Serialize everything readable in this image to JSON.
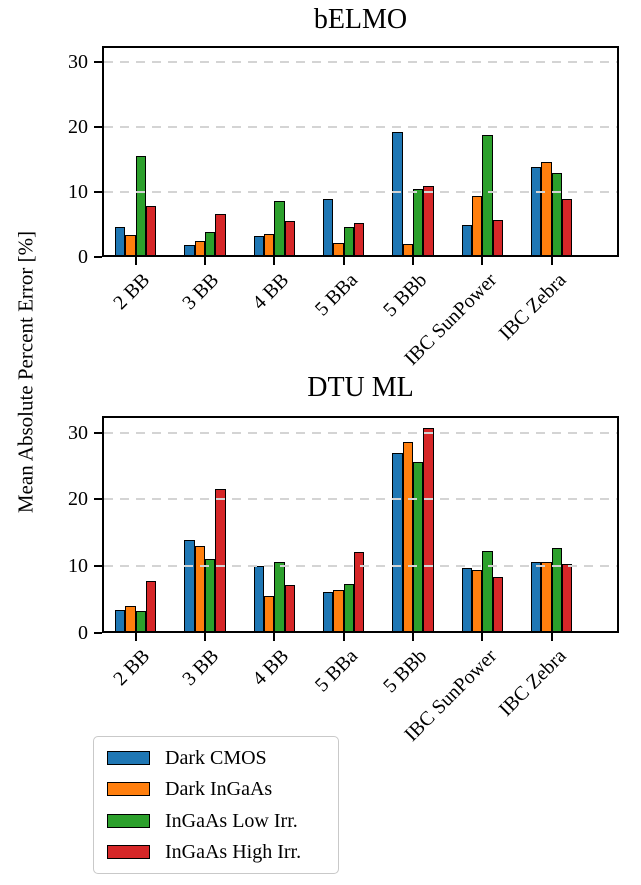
{
  "figure": {
    "ylabel": "Mean Absolute Percent Error [%]"
  },
  "chart_data": [
    {
      "type": "bar",
      "title": "bELMO",
      "categories": [
        "2 BB",
        "3 BB",
        "4 BB",
        "5 BBa",
        "5 BBb",
        "IBC SunPower",
        "IBC Zebra"
      ],
      "series": [
        {
          "name": "Dark CMOS",
          "color": "#1f77b4",
          "values": [
            4.6,
            1.8,
            3.3,
            8.9,
            19.2,
            4.9,
            13.9
          ]
        },
        {
          "name": "Dark InGaAs",
          "color": "#ff7f0e",
          "values": [
            3.4,
            2.5,
            3.6,
            2.2,
            2.0,
            9.4,
            14.7
          ]
        },
        {
          "name": "InGaAs Low Irr.",
          "color": "#2ca02c",
          "values": [
            15.6,
            3.8,
            8.6,
            4.7,
            10.5,
            18.8,
            12.9
          ]
        },
        {
          "name": "InGaAs High Irr.",
          "color": "#d62728",
          "values": [
            7.9,
            6.7,
            5.5,
            5.2,
            11.0,
            5.7,
            8.9
          ]
        }
      ],
      "ylabel": "Mean Absolute Percent Error [%]",
      "xlabel": "",
      "ylim": [
        0,
        32.5
      ],
      "yticks": [
        0,
        10,
        20,
        30
      ],
      "grid": "horizontal-dashed",
      "legend_position": "below-left"
    },
    {
      "type": "bar",
      "title": "DTU ML",
      "categories": [
        "2 BB",
        "3 BB",
        "4 BB",
        "5 BBa",
        "5 BBb",
        "IBC SunPower",
        "IBC Zebra"
      ],
      "series": [
        {
          "name": "Dark CMOS",
          "color": "#1f77b4",
          "values": [
            3.5,
            13.9,
            10.0,
            6.1,
            26.9,
            9.8,
            10.6
          ]
        },
        {
          "name": "Dark InGaAs",
          "color": "#ff7f0e",
          "values": [
            4.0,
            13.1,
            5.6,
            6.5,
            28.6,
            9.4,
            10.7
          ]
        },
        {
          "name": "InGaAs Low Irr.",
          "color": "#2ca02c",
          "values": [
            3.3,
            11.1,
            10.7,
            7.4,
            25.6,
            12.3,
            12.8
          ]
        },
        {
          "name": "InGaAs High Irr.",
          "color": "#d62728",
          "values": [
            7.8,
            21.5,
            7.2,
            12.2,
            30.7,
            8.4,
            10.3
          ]
        }
      ],
      "ylabel": "Mean Absolute Percent Error [%]",
      "xlabel": "",
      "ylim": [
        0,
        32.5
      ],
      "yticks": [
        0,
        10,
        20,
        30
      ],
      "grid": "horizontal-dashed",
      "legend_position": "below-left"
    }
  ],
  "legend": {
    "items": [
      {
        "label": "Dark CMOS",
        "color": "#1f77b4"
      },
      {
        "label": "Dark InGaAs",
        "color": "#ff7f0e"
      },
      {
        "label": "InGaAs Low Irr.",
        "color": "#2ca02c"
      },
      {
        "label": "InGaAs High Irr.",
        "color": "#d62728"
      }
    ]
  }
}
